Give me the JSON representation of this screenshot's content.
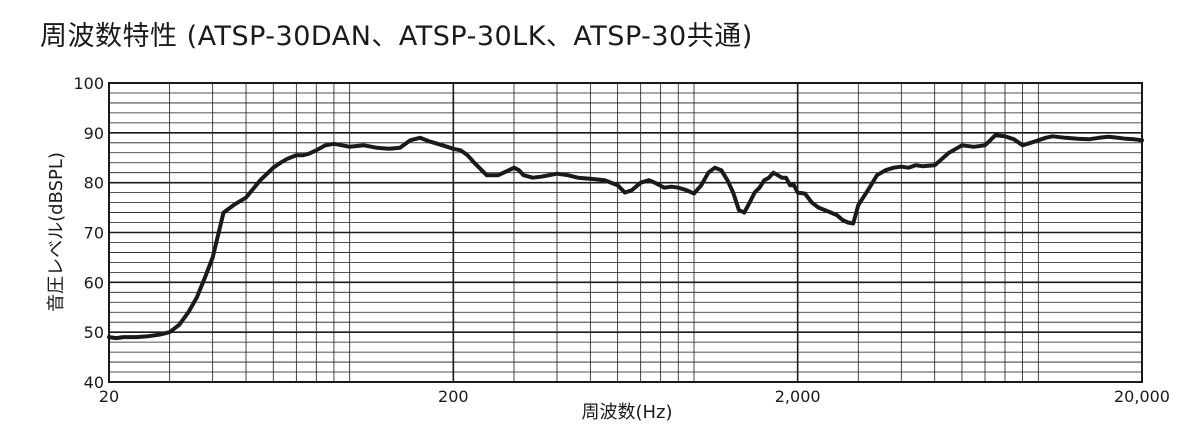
{
  "chart_data": {
    "type": "line",
    "title": "周波数特性 (ATSP-30DAN、ATSP-30LK、ATSP-30共通)",
    "xlabel": "周波数(Hz)",
    "ylabel": "音圧レベル(dBSPL)",
    "x_scale": "log",
    "xlim": [
      20,
      20000
    ],
    "ylim": [
      40,
      100
    ],
    "grid": true,
    "x_ticks": [
      "20",
      "200",
      "2,000",
      "20,000"
    ],
    "y_ticks": [
      "40",
      "50",
      "60",
      "70",
      "80",
      "90",
      "100"
    ],
    "line_color": "#1a1a1a",
    "series": [
      {
        "x": [
          20,
          21,
          22,
          24,
          26,
          28,
          30,
          32,
          34,
          36,
          38,
          40,
          43,
          46,
          50,
          55,
          60,
          63,
          66,
          70,
          73,
          76,
          80,
          85,
          90,
          95,
          100,
          110,
          120,
          130,
          140,
          150,
          160,
          170,
          180,
          190,
          200,
          210,
          220,
          230,
          250,
          270,
          290,
          300,
          310,
          320,
          340,
          360,
          380,
          400,
          430,
          460,
          500,
          550,
          600,
          630,
          660,
          700,
          740,
          780,
          820,
          860,
          900,
          950,
          1000,
          1050,
          1100,
          1150,
          1200,
          1250,
          1300,
          1350,
          1400,
          1450,
          1500,
          1550,
          1600,
          1650,
          1700,
          1750,
          1800,
          1850,
          1900,
          1950,
          2000,
          2100,
          2200,
          2300,
          2400,
          2500,
          2600,
          2700,
          2800,
          2900,
          3000,
          3200,
          3400,
          3600,
          3800,
          4000,
          4200,
          4400,
          4600,
          5000,
          5500,
          6000,
          6500,
          7000,
          7500,
          8000,
          8500,
          9000,
          9500,
          10000,
          10500,
          11000,
          12000,
          13000,
          14000,
          15000,
          16000,
          17000,
          18000,
          19000,
          20000
        ],
        "y": [
          49,
          48.8,
          49,
          49,
          49.2,
          49.5,
          50,
          51.5,
          54,
          57,
          61,
          65,
          74,
          75.5,
          77,
          80.5,
          83,
          84,
          84.8,
          85.5,
          85.5,
          85.8,
          86.5,
          87.5,
          87.8,
          87.5,
          87.2,
          87.5,
          87,
          86.8,
          87,
          88.5,
          89,
          88.3,
          87.8,
          87.3,
          86.8,
          86.5,
          85.5,
          84,
          81.5,
          81.5,
          82.5,
          83,
          82.5,
          81.5,
          81,
          81.2,
          81.5,
          81.8,
          81.5,
          81,
          80.8,
          80.5,
          79.5,
          78,
          78.5,
          80,
          80.5,
          79.8,
          79,
          79.2,
          79,
          78.5,
          77.8,
          79.5,
          82,
          83,
          82.5,
          80.5,
          78,
          74.5,
          74,
          76,
          78,
          79,
          80.5,
          81,
          82,
          81.5,
          81,
          81,
          79.5,
          79.5,
          78,
          77.8,
          76,
          75,
          74.5,
          74,
          73.5,
          72.5,
          72,
          71.8,
          75.5,
          78.5,
          81.5,
          82.5,
          83,
          83.2,
          83,
          83.5,
          83.3,
          83.5,
          86,
          87.5,
          87.2,
          87.5,
          89.5,
          89.3,
          88.7,
          87.5,
          88,
          88.5,
          89,
          89.3,
          89,
          88.8,
          88.7,
          89,
          89.2,
          89,
          88.8,
          88.7,
          88.5
        ]
      }
    ]
  }
}
